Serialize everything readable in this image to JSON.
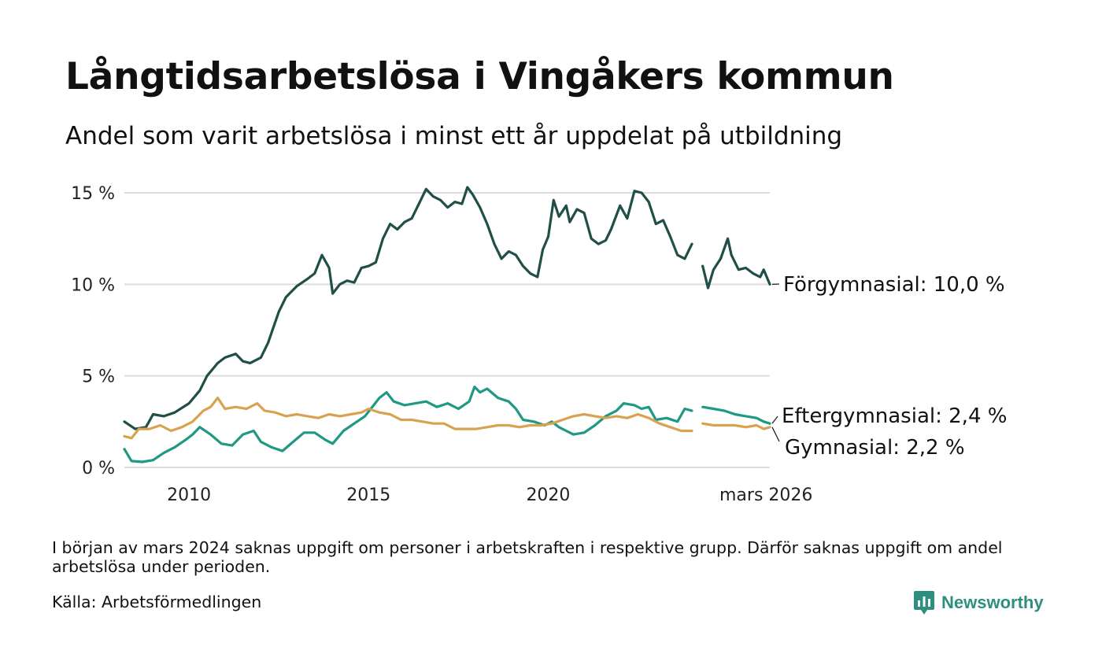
{
  "title": "Långtidsarbetslösa i Vingåkers kommun",
  "subtitle": "Andel som varit arbetslösa i minst ett år uppdelat på utbildning",
  "note": "I början av mars 2024 saknas uppgift om personer i arbetskraften i respektive grupp. Därför saknas uppgift om andel arbetslösa under perioden.",
  "source": "Källa: Arbetsförmedlingen",
  "brand": {
    "name": "Newsworthy",
    "color": "#2f8f7f"
  },
  "chart_data": {
    "type": "line",
    "title": "Långtidsarbetslösa i Vingåkers kommun",
    "xlabel": "",
    "ylabel": "",
    "x_range": [
      2008.2,
      2026.17
    ],
    "ylim": [
      0,
      15
    ],
    "y_ticks": [
      {
        "value": 0,
        "label": "0 %"
      },
      {
        "value": 5,
        "label": "5 %"
      },
      {
        "value": 10,
        "label": "10 %"
      },
      {
        "value": 15,
        "label": "15 %"
      }
    ],
    "x_ticks": [
      {
        "value": 2010,
        "label": "2010"
      },
      {
        "value": 2015,
        "label": "2015"
      },
      {
        "value": 2020,
        "label": "2020"
      },
      {
        "value": 2026.17,
        "label": "mars 2026"
      }
    ],
    "grid": true,
    "gap": [
      2024.0,
      2024.3
    ],
    "series": [
      {
        "name": "Förgymnasial",
        "label_name": "Förgymnasial:",
        "label_value": "10,0 %",
        "color": "#1f4f47",
        "points": [
          [
            2008.2,
            2.5
          ],
          [
            2008.5,
            2.1
          ],
          [
            2008.8,
            2.2
          ],
          [
            2009.0,
            2.9
          ],
          [
            2009.3,
            2.8
          ],
          [
            2009.6,
            3.0
          ],
          [
            2010.0,
            3.5
          ],
          [
            2010.3,
            4.2
          ],
          [
            2010.5,
            5.0
          ],
          [
            2010.8,
            5.7
          ],
          [
            2011.0,
            6.0
          ],
          [
            2011.3,
            6.2
          ],
          [
            2011.5,
            5.8
          ],
          [
            2011.7,
            5.7
          ],
          [
            2012.0,
            6.0
          ],
          [
            2012.2,
            6.8
          ],
          [
            2012.5,
            8.5
          ],
          [
            2012.7,
            9.3
          ],
          [
            2013.0,
            9.9
          ],
          [
            2013.3,
            10.3
          ],
          [
            2013.5,
            10.6
          ],
          [
            2013.7,
            11.6
          ],
          [
            2013.9,
            10.9
          ],
          [
            2014.0,
            9.5
          ],
          [
            2014.2,
            10.0
          ],
          [
            2014.4,
            10.2
          ],
          [
            2014.6,
            10.1
          ],
          [
            2014.8,
            10.9
          ],
          [
            2015.0,
            11.0
          ],
          [
            2015.2,
            11.2
          ],
          [
            2015.4,
            12.5
          ],
          [
            2015.6,
            13.3
          ],
          [
            2015.8,
            13.0
          ],
          [
            2016.0,
            13.4
          ],
          [
            2016.2,
            13.6
          ],
          [
            2016.4,
            14.4
          ],
          [
            2016.6,
            15.2
          ],
          [
            2016.8,
            14.8
          ],
          [
            2017.0,
            14.6
          ],
          [
            2017.2,
            14.2
          ],
          [
            2017.4,
            14.5
          ],
          [
            2017.6,
            14.4
          ],
          [
            2017.75,
            15.3
          ],
          [
            2017.9,
            14.9
          ],
          [
            2018.1,
            14.2
          ],
          [
            2018.3,
            13.3
          ],
          [
            2018.5,
            12.2
          ],
          [
            2018.7,
            11.4
          ],
          [
            2018.9,
            11.8
          ],
          [
            2019.1,
            11.6
          ],
          [
            2019.3,
            11.0
          ],
          [
            2019.5,
            10.6
          ],
          [
            2019.7,
            10.4
          ],
          [
            2019.85,
            11.9
          ],
          [
            2020.0,
            12.6
          ],
          [
            2020.15,
            14.6
          ],
          [
            2020.3,
            13.7
          ],
          [
            2020.5,
            14.3
          ],
          [
            2020.6,
            13.4
          ],
          [
            2020.8,
            14.1
          ],
          [
            2021.0,
            13.9
          ],
          [
            2021.2,
            12.5
          ],
          [
            2021.4,
            12.2
          ],
          [
            2021.6,
            12.4
          ],
          [
            2021.75,
            13.0
          ],
          [
            2022.0,
            14.3
          ],
          [
            2022.2,
            13.6
          ],
          [
            2022.4,
            15.1
          ],
          [
            2022.6,
            15.0
          ],
          [
            2022.8,
            14.5
          ],
          [
            2023.0,
            13.3
          ],
          [
            2023.2,
            13.5
          ],
          [
            2023.4,
            12.6
          ],
          [
            2023.6,
            11.6
          ],
          [
            2023.8,
            11.4
          ],
          [
            2024.0,
            12.2
          ],
          [
            2024.3,
            11.0
          ],
          [
            2024.45,
            9.8
          ],
          [
            2024.6,
            10.8
          ],
          [
            2024.8,
            11.4
          ],
          [
            2025.0,
            12.5
          ],
          [
            2025.1,
            11.6
          ],
          [
            2025.3,
            10.8
          ],
          [
            2025.5,
            10.9
          ],
          [
            2025.7,
            10.6
          ],
          [
            2025.9,
            10.4
          ],
          [
            2026.0,
            10.8
          ],
          [
            2026.17,
            10.0
          ]
        ]
      },
      {
        "name": "Eftergymnasial",
        "label_name": "Eftergymnasial:",
        "label_value": "2,4 %",
        "color": "#1f9983",
        "points": [
          [
            2008.2,
            1.0
          ],
          [
            2008.4,
            0.35
          ],
          [
            2008.7,
            0.3
          ],
          [
            2009.0,
            0.4
          ],
          [
            2009.3,
            0.8
          ],
          [
            2009.6,
            1.1
          ],
          [
            2009.9,
            1.5
          ],
          [
            2010.1,
            1.8
          ],
          [
            2010.3,
            2.2
          ],
          [
            2010.6,
            1.8
          ],
          [
            2010.9,
            1.3
          ],
          [
            2011.2,
            1.2
          ],
          [
            2011.5,
            1.8
          ],
          [
            2011.8,
            2.0
          ],
          [
            2012.0,
            1.4
          ],
          [
            2012.3,
            1.1
          ],
          [
            2012.6,
            0.9
          ],
          [
            2012.9,
            1.4
          ],
          [
            2013.2,
            1.9
          ],
          [
            2013.5,
            1.9
          ],
          [
            2013.8,
            1.5
          ],
          [
            2014.0,
            1.3
          ],
          [
            2014.3,
            2.0
          ],
          [
            2014.6,
            2.4
          ],
          [
            2014.9,
            2.8
          ],
          [
            2015.1,
            3.3
          ],
          [
            2015.3,
            3.8
          ],
          [
            2015.5,
            4.1
          ],
          [
            2015.7,
            3.6
          ],
          [
            2016.0,
            3.4
          ],
          [
            2016.3,
            3.5
          ],
          [
            2016.6,
            3.6
          ],
          [
            2016.9,
            3.3
          ],
          [
            2017.2,
            3.5
          ],
          [
            2017.5,
            3.2
          ],
          [
            2017.8,
            3.6
          ],
          [
            2017.95,
            4.4
          ],
          [
            2018.1,
            4.1
          ],
          [
            2018.3,
            4.3
          ],
          [
            2018.6,
            3.8
          ],
          [
            2018.9,
            3.6
          ],
          [
            2019.1,
            3.2
          ],
          [
            2019.3,
            2.6
          ],
          [
            2019.6,
            2.5
          ],
          [
            2019.9,
            2.3
          ],
          [
            2020.1,
            2.5
          ],
          [
            2020.3,
            2.2
          ],
          [
            2020.5,
            2.0
          ],
          [
            2020.7,
            1.8
          ],
          [
            2021.0,
            1.9
          ],
          [
            2021.3,
            2.3
          ],
          [
            2021.6,
            2.8
          ],
          [
            2021.9,
            3.1
          ],
          [
            2022.1,
            3.5
          ],
          [
            2022.4,
            3.4
          ],
          [
            2022.6,
            3.2
          ],
          [
            2022.8,
            3.3
          ],
          [
            2023.0,
            2.6
          ],
          [
            2023.3,
            2.7
          ],
          [
            2023.6,
            2.5
          ],
          [
            2023.8,
            3.2
          ],
          [
            2024.0,
            3.1
          ],
          [
            2024.3,
            3.3
          ],
          [
            2024.6,
            3.2
          ],
          [
            2024.9,
            3.1
          ],
          [
            2025.2,
            2.9
          ],
          [
            2025.5,
            2.8
          ],
          [
            2025.8,
            2.7
          ],
          [
            2026.0,
            2.5
          ],
          [
            2026.17,
            2.4
          ]
        ]
      },
      {
        "name": "Gymnasial",
        "label_name": "Gymnasial:",
        "label_value": "2,2 %",
        "color": "#d8a350",
        "points": [
          [
            2008.2,
            1.7
          ],
          [
            2008.4,
            1.6
          ],
          [
            2008.6,
            2.1
          ],
          [
            2008.9,
            2.1
          ],
          [
            2009.2,
            2.3
          ],
          [
            2009.5,
            2.0
          ],
          [
            2009.8,
            2.2
          ],
          [
            2010.1,
            2.5
          ],
          [
            2010.4,
            3.1
          ],
          [
            2010.6,
            3.3
          ],
          [
            2010.8,
            3.8
          ],
          [
            2011.0,
            3.2
          ],
          [
            2011.3,
            3.3
          ],
          [
            2011.6,
            3.2
          ],
          [
            2011.9,
            3.5
          ],
          [
            2012.1,
            3.1
          ],
          [
            2012.4,
            3.0
          ],
          [
            2012.7,
            2.8
          ],
          [
            2013.0,
            2.9
          ],
          [
            2013.3,
            2.8
          ],
          [
            2013.6,
            2.7
          ],
          [
            2013.9,
            2.9
          ],
          [
            2014.2,
            2.8
          ],
          [
            2014.5,
            2.9
          ],
          [
            2014.8,
            3.0
          ],
          [
            2015.0,
            3.2
          ],
          [
            2015.3,
            3.0
          ],
          [
            2015.6,
            2.9
          ],
          [
            2015.9,
            2.6
          ],
          [
            2016.2,
            2.6
          ],
          [
            2016.5,
            2.5
          ],
          [
            2016.8,
            2.4
          ],
          [
            2017.1,
            2.4
          ],
          [
            2017.4,
            2.1
          ],
          [
            2017.7,
            2.1
          ],
          [
            2018.0,
            2.1
          ],
          [
            2018.3,
            2.2
          ],
          [
            2018.6,
            2.3
          ],
          [
            2018.9,
            2.3
          ],
          [
            2019.2,
            2.2
          ],
          [
            2019.5,
            2.3
          ],
          [
            2019.8,
            2.3
          ],
          [
            2020.1,
            2.4
          ],
          [
            2020.4,
            2.6
          ],
          [
            2020.7,
            2.8
          ],
          [
            2021.0,
            2.9
          ],
          [
            2021.3,
            2.8
          ],
          [
            2021.6,
            2.7
          ],
          [
            2021.9,
            2.8
          ],
          [
            2022.2,
            2.7
          ],
          [
            2022.5,
            2.9
          ],
          [
            2022.8,
            2.7
          ],
          [
            2023.1,
            2.4
          ],
          [
            2023.4,
            2.2
          ],
          [
            2023.7,
            2.0
          ],
          [
            2024.0,
            2.0
          ],
          [
            2024.3,
            2.4
          ],
          [
            2024.6,
            2.3
          ],
          [
            2024.9,
            2.3
          ],
          [
            2025.2,
            2.3
          ],
          [
            2025.5,
            2.2
          ],
          [
            2025.8,
            2.3
          ],
          [
            2026.0,
            2.1
          ],
          [
            2026.17,
            2.2
          ]
        ]
      }
    ]
  }
}
